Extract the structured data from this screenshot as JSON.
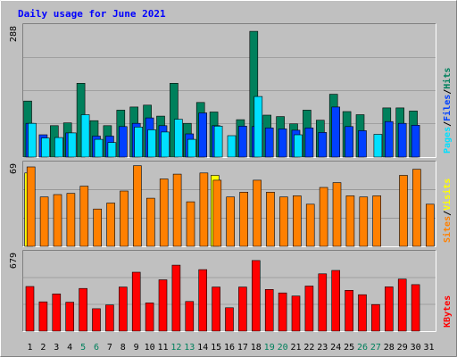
{
  "chart_data": {
    "type": "bar",
    "title": "Daily usage for June 2021",
    "days": [
      "1",
      "2",
      "3",
      "4",
      "5",
      "6",
      "7",
      "8",
      "9",
      "10",
      "11",
      "12",
      "13",
      "14",
      "15",
      "16",
      "17",
      "18",
      "19",
      "20",
      "21",
      "22",
      "23",
      "24",
      "25",
      "26",
      "27",
      "28",
      "29",
      "30",
      "31"
    ],
    "weekend_days": [
      5,
      6,
      12,
      13,
      19,
      20,
      26,
      27
    ],
    "colors": {
      "background": "#c0c0c0",
      "hits": "#00805c",
      "files": "#0040ff",
      "pages": "#00e0ff",
      "visits": "#ffff00",
      "sites": "#ff8000",
      "kbytes": "#ff0000",
      "title": "#0000ff",
      "weekend_label": "#00805c",
      "weekday_label": "#000000",
      "grid": "#808080"
    },
    "panels": [
      {
        "id": "requests",
        "max_label": "288",
        "ymax": 288,
        "legend": [
          {
            "text": "Hits",
            "color": "#00805c"
          },
          {
            "text": "/",
            "color": "#000000"
          },
          {
            "text": "Files",
            "color": "#0040ff"
          },
          {
            "text": "/",
            "color": "#000000"
          },
          {
            "text": "Pages",
            "color": "#00e0ff"
          }
        ],
        "series": [
          {
            "name": "Hits",
            "color": "#00805c",
            "values": [
              123,
              0,
              69,
              75,
              162,
              80,
              69,
              103,
              110,
              114,
              90,
              162,
              74,
              120,
              99,
              0,
              82,
              276,
              92,
              89,
              73,
              103,
              81,
              138,
              100,
              93,
              0,
              108,
              108,
              101,
              0
            ]
          },
          {
            "name": "Files",
            "color": "#0040ff",
            "values": [
              74,
              49,
              0,
              53,
              0,
              46,
              46,
              67,
              74,
              86,
              69,
              0,
              51,
              97,
              69,
              0,
              68,
              67,
              64,
              62,
              59,
              64,
              54,
              110,
              67,
              58,
              0,
              78,
              74,
              70,
              0
            ]
          },
          {
            "name": "Pages",
            "color": "#00e0ff",
            "values": [
              74,
              42,
              43,
              53,
              93,
              39,
              32,
              0,
              66,
              60,
              55,
              83,
              39,
              0,
              68,
              47,
              0,
              133,
              0,
              0,
              49,
              0,
              0,
              0,
              0,
              0,
              50,
              0,
              0,
              0,
              0
            ]
          }
        ]
      },
      {
        "id": "visitors",
        "max_label": "69",
        "ymax": 69,
        "legend": [
          {
            "text": "Visits",
            "color": "#ffff00"
          },
          {
            "text": "/",
            "color": "#000000"
          },
          {
            "text": "Sites",
            "color": "#ff8000"
          }
        ],
        "series": [
          {
            "name": "Visits",
            "color": "#ffff00",
            "values": [
              61,
              0,
              0,
              0,
              0,
              0,
              0,
              0,
              0,
              0,
              0,
              0,
              0,
              0,
              59,
              0,
              0,
              0,
              0,
              0,
              0,
              0,
              0,
              0,
              0,
              0,
              0,
              0,
              0,
              0,
              0
            ]
          },
          {
            "name": "Sites",
            "color": "#ff8000",
            "values": [
              66,
              41,
              43,
              44,
              50,
              31,
              36,
              46,
              67,
              40,
              56,
              60,
              37,
              61,
              55,
              41,
              45,
              55,
              45,
              41,
              42,
              35,
              49,
              53,
              42,
              41,
              42,
              0,
              59,
              64,
              35
            ]
          }
        ]
      },
      {
        "id": "kbytes",
        "max_label": "679",
        "ymax": 679,
        "legend": [
          {
            "text": "KBytes",
            "color": "#ff0000"
          }
        ],
        "series": [
          {
            "name": "KBytes",
            "color": "#ff0000",
            "values": [
              386,
              253,
              322,
              250,
              369,
              194,
              226,
              381,
              509,
              244,
              444,
              570,
              256,
              532,
              381,
              202,
              381,
              610,
              360,
              330,
              303,
              390,
              495,
              525,
              353,
              315,
              230,
              383,
              450,
              402,
              0
            ]
          }
        ]
      }
    ]
  }
}
